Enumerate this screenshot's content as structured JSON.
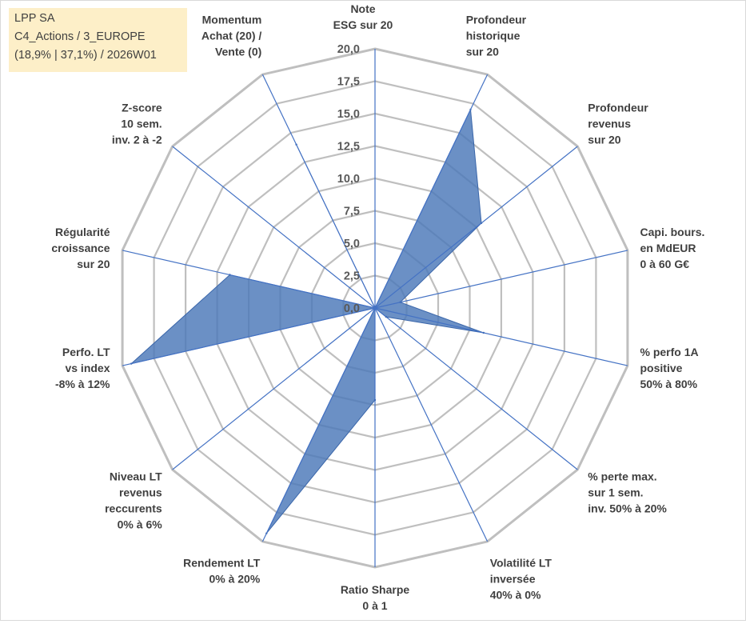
{
  "info": {
    "line1": "LPP SA",
    "line2": "C4_Actions / 3_EUROPE",
    "line3": "(18,9% | 37,1%) / 2026W01"
  },
  "chart_data": {
    "type": "radar",
    "ylim": [
      0,
      20
    ],
    "ticks": [
      "0,0",
      "2,5",
      "5,0",
      "7,5",
      "10,0",
      "12,5",
      "15,0",
      "17,5",
      "20,0"
    ],
    "categories": [
      [
        "Note",
        "ESG sur 20"
      ],
      [
        "Profondeur",
        "historique",
        "sur 20"
      ],
      [
        "Profondeur",
        "revenus",
        "sur 20"
      ],
      [
        "Capi. bours.",
        "en MdEUR",
        "0 à 60 G€"
      ],
      [
        "% perfo 1A",
        "positive",
        "50% à 80%"
      ],
      [
        "% perte max.",
        "sur 1 sem.",
        "inv. 50% à 20%"
      ],
      [
        "Volatilité LT",
        "inversée",
        "40% à 0%"
      ],
      [
        "Ratio Sharpe",
        "0 à 1"
      ],
      [
        "Rendement LT",
        "0% à 20%"
      ],
      [
        "Niveau LT",
        "revenus",
        "reccurents",
        "0% à 6%"
      ],
      [
        "Perfo. LT",
        "vs index",
        "-8% à 12%"
      ],
      [
        "Régularité",
        "croissance",
        "sur 20"
      ],
      [
        "Z-score",
        "10 sem.",
        "inv. 2 à -2"
      ],
      [
        "Momentum",
        "Achat (20) /",
        "Vente (0)"
      ]
    ],
    "values": [
      0.0,
      17.0,
      10.5,
      2.0,
      8.6,
      1.1,
      0.0,
      7.1,
      19.3,
      0.0,
      19.3,
      11.5,
      0.0,
      14.0
    ],
    "colors": {
      "fill": "#4a78b8",
      "stroke": "#3a66aa",
      "grid": "#bfbfbf",
      "spoke": "#4472c4"
    },
    "grid": true
  }
}
